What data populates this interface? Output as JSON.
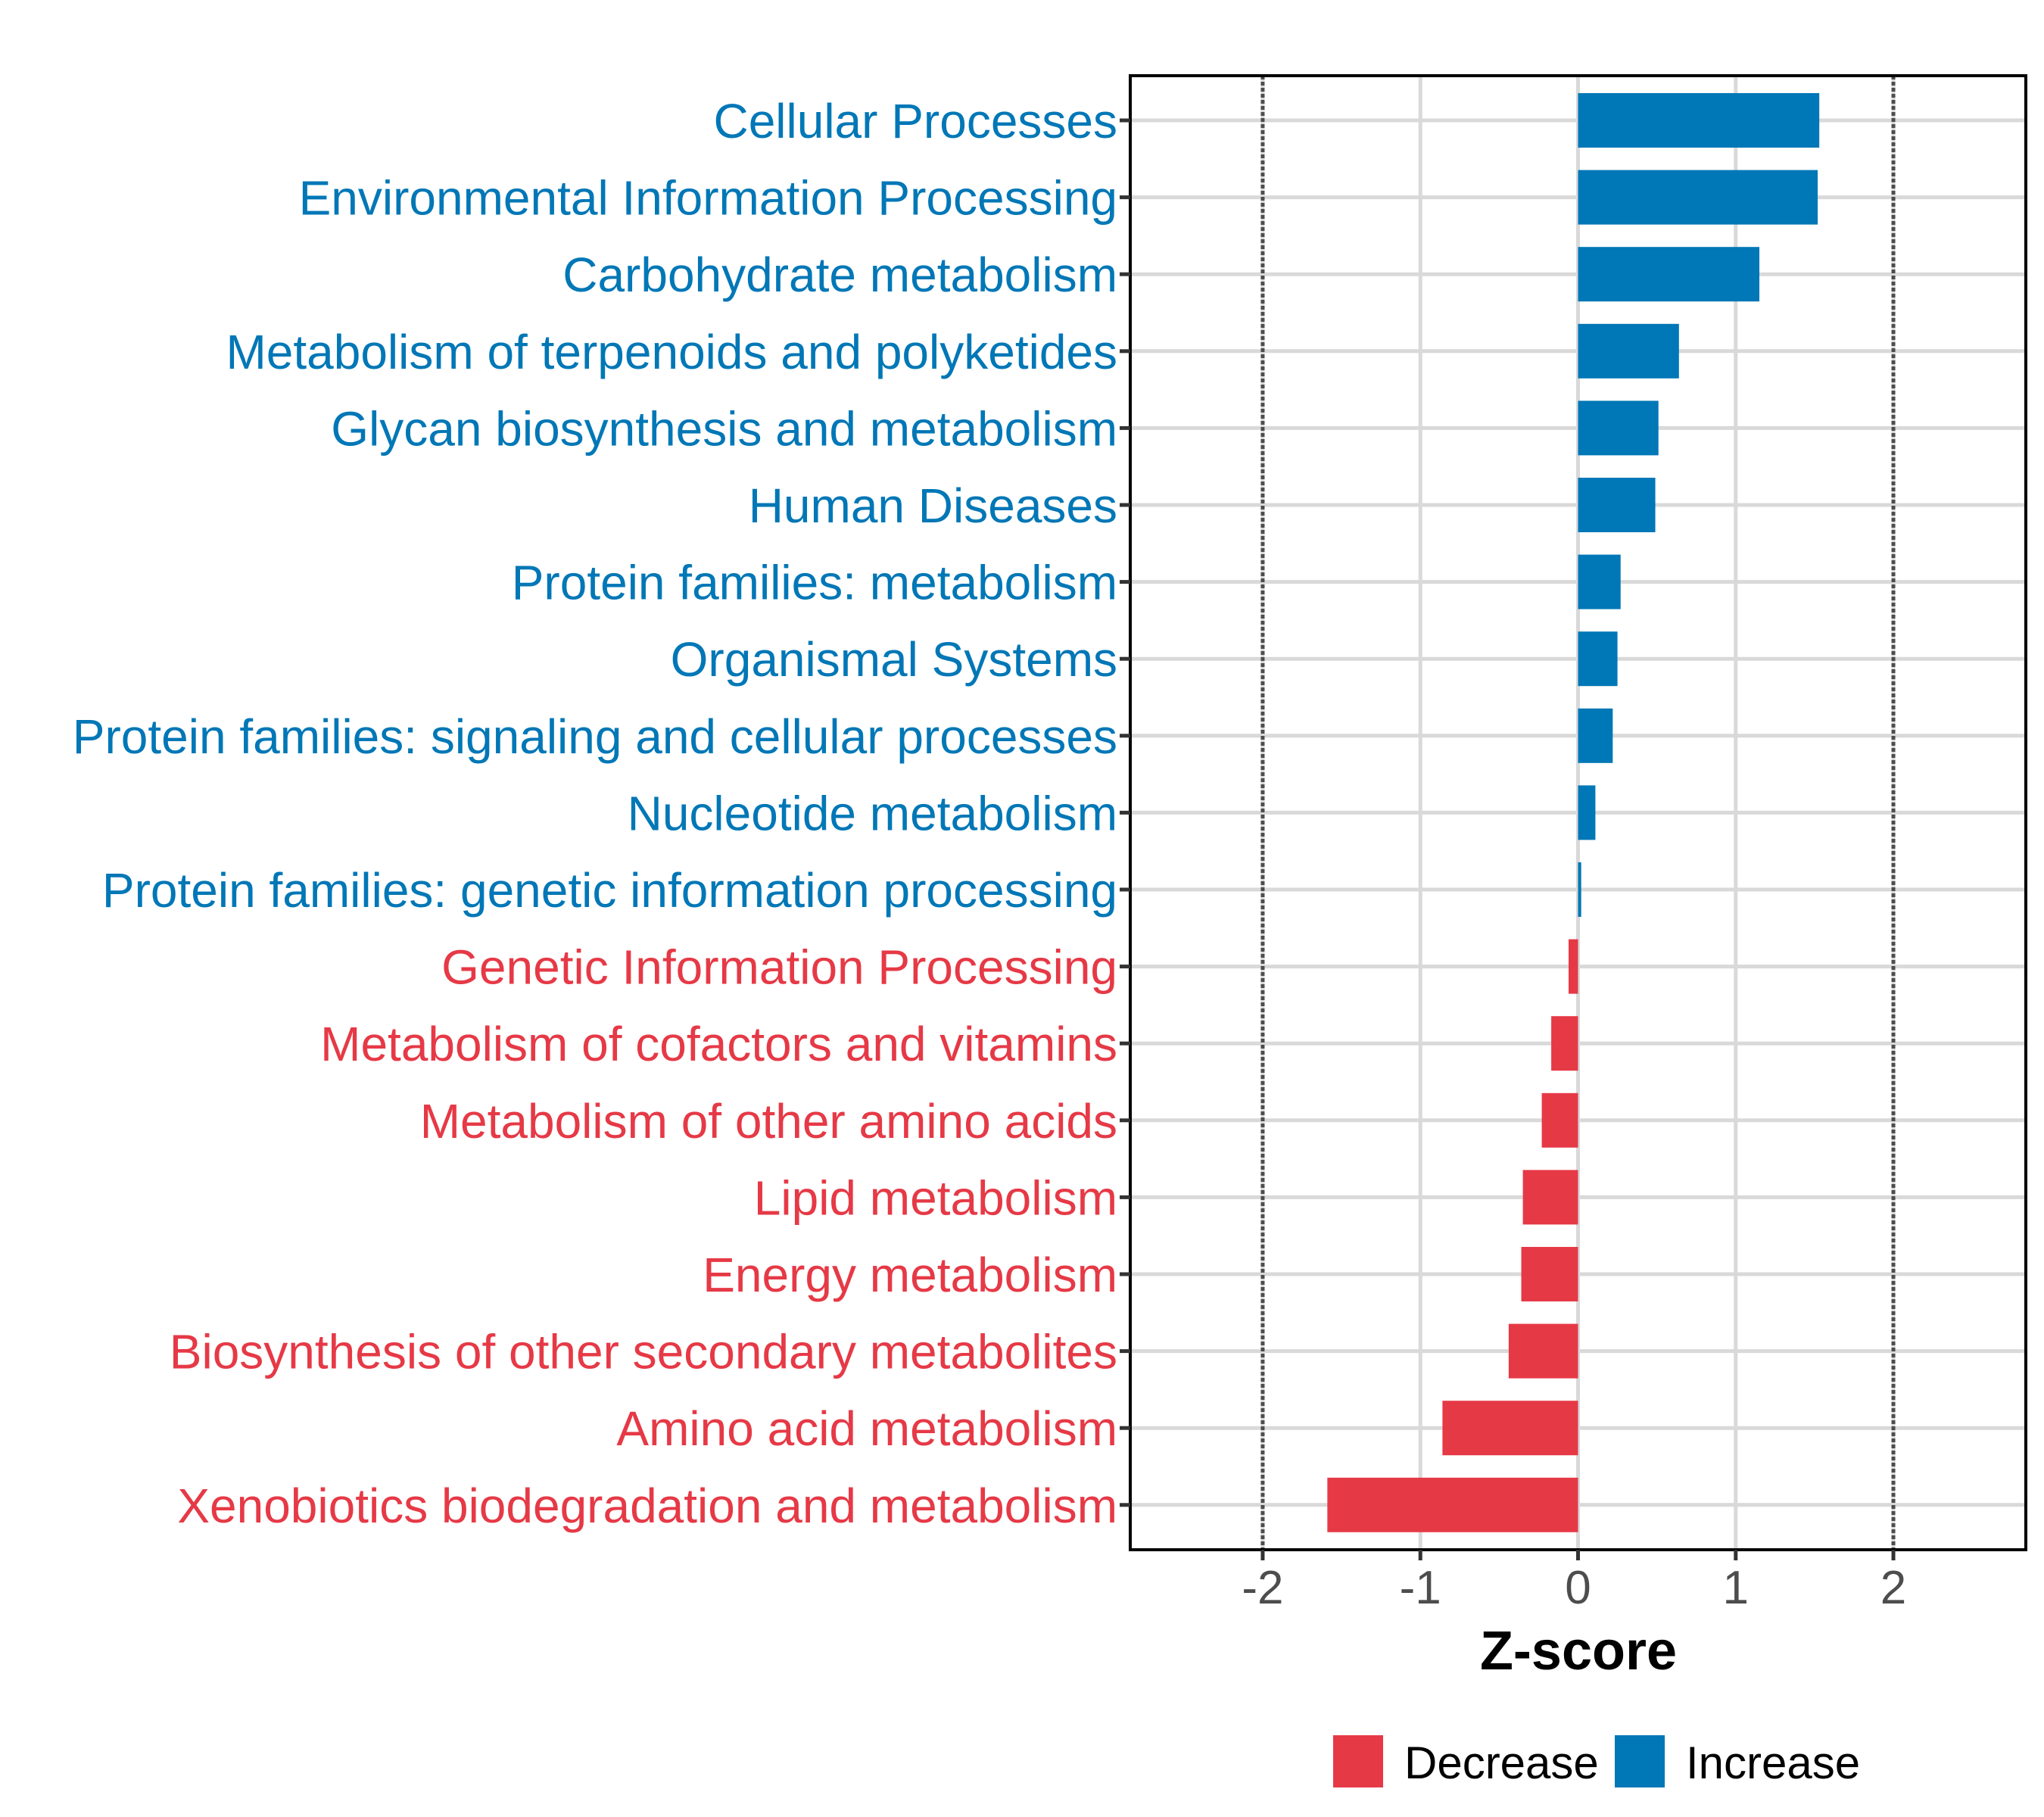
{
  "chart_data": {
    "type": "bar",
    "orientation": "horizontal",
    "title": "",
    "xlabel": "Z-score",
    "ylabel": "",
    "xlim": [
      -2.84,
      2.84
    ],
    "xticks": [
      -2,
      -1,
      0,
      1,
      2
    ],
    "xtick_labels": [
      "-2",
      "-1",
      "0",
      "1",
      "2"
    ],
    "reference_lines": [
      {
        "x": -2,
        "style": "dotted"
      },
      {
        "x": 2,
        "style": "dotted"
      }
    ],
    "grid": true,
    "legend": {
      "position": "bottom",
      "entries": [
        {
          "label": "Decrease",
          "color": "#E63946"
        },
        {
          "label": "Increase",
          "color": "#0077B6"
        }
      ]
    },
    "categories": [
      "Cellular Processes",
      "Environmental Information Processing",
      "Carbohydrate metabolism",
      "Metabolism of terpenoids and polyketides",
      "Glycan biosynthesis and metabolism",
      "Human Diseases",
      "Protein families: metabolism",
      "Organismal Systems",
      "Protein families: signaling and cellular processes",
      "Nucleotide metabolism",
      "Protein families: genetic information processing",
      "Genetic Information Processing",
      "Metabolism of cofactors and vitamins",
      "Metabolism of other amino acids",
      "Lipid metabolism",
      "Energy metabolism",
      "Biosynthesis of other secondary metabolites",
      "Amino acid metabolism",
      "Xenobiotics biodegradation and metabolism"
    ],
    "values": [
      1.53,
      1.52,
      1.15,
      0.64,
      0.51,
      0.49,
      0.27,
      0.25,
      0.22,
      0.11,
      0.02,
      -0.06,
      -0.17,
      -0.23,
      -0.35,
      -0.36,
      -0.44,
      -0.86,
      -1.59
    ],
    "groups": [
      "Increase",
      "Increase",
      "Increase",
      "Increase",
      "Increase",
      "Increase",
      "Increase",
      "Increase",
      "Increase",
      "Increase",
      "Increase",
      "Decrease",
      "Decrease",
      "Decrease",
      "Decrease",
      "Decrease",
      "Decrease",
      "Decrease",
      "Decrease"
    ]
  }
}
